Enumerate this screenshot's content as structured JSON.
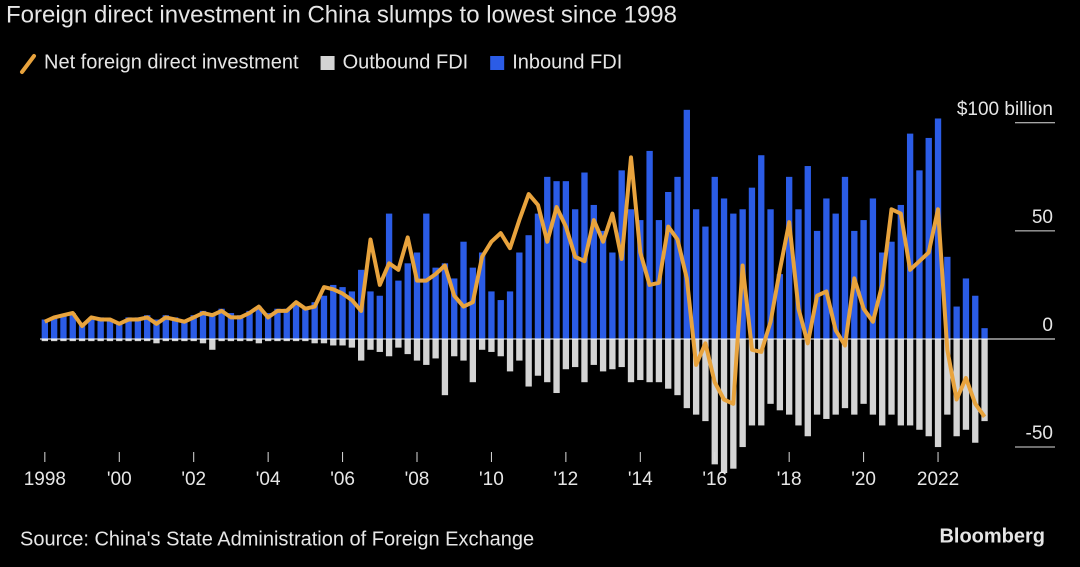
{
  "chart_data": {
    "type": "bar-line",
    "title": "Foreign direct investment in China slumps to lowest since 1998",
    "source": "Source: China's State Administration of Foreign Exchange",
    "brand": "Bloomberg",
    "x": [
      1998,
      1998.25,
      1998.5,
      1998.75,
      1999,
      1999.25,
      1999.5,
      1999.75,
      2000,
      2000.25,
      2000.5,
      2000.75,
      2001,
      2001.25,
      2001.5,
      2001.75,
      2002,
      2002.25,
      2002.5,
      2002.75,
      2003,
      2003.25,
      2003.5,
      2003.75,
      2004,
      2004.25,
      2004.5,
      2004.75,
      2005,
      2005.25,
      2005.5,
      2005.75,
      2006,
      2006.25,
      2006.5,
      2006.75,
      2007,
      2007.25,
      2007.5,
      2007.75,
      2008,
      2008.25,
      2008.5,
      2008.75,
      2009,
      2009.25,
      2009.5,
      2009.75,
      2010,
      2010.25,
      2010.5,
      2010.75,
      2011,
      2011.25,
      2011.5,
      2011.75,
      2012,
      2012.25,
      2012.5,
      2012.75,
      2013,
      2013.25,
      2013.5,
      2013.75,
      2014,
      2014.25,
      2014.5,
      2014.75,
      2015,
      2015.25,
      2015.5,
      2015.75,
      2016,
      2016.25,
      2016.5,
      2016.75,
      2017,
      2017.25,
      2017.5,
      2017.75,
      2018,
      2018.25,
      2018.5,
      2018.75,
      2019,
      2019.25,
      2019.5,
      2019.75,
      2020,
      2020.25,
      2020.5,
      2020.75,
      2021,
      2021.25,
      2021.5,
      2021.75,
      2022,
      2022.25,
      2022.5,
      2022.75,
      2023,
      2023.25
    ],
    "series": [
      {
        "name": "Net foreign direct investment",
        "kind": "line",
        "color": "#e8a33d",
        "values": [
          8,
          10,
          11,
          12,
          6,
          10,
          9,
          9,
          7,
          9,
          9,
          10,
          7,
          10,
          9,
          8,
          10,
          12,
          11,
          13,
          10,
          10,
          12,
          15,
          10,
          13,
          13,
          17,
          14,
          15,
          24,
          23,
          21,
          18,
          13,
          46,
          25,
          35,
          32,
          47,
          27,
          27,
          30,
          34,
          20,
          15,
          17,
          38,
          45,
          49,
          42,
          55,
          67,
          62,
          45,
          61,
          52,
          38,
          36,
          55,
          45,
          58,
          37,
          84,
          40,
          25,
          26,
          52,
          46,
          28,
          -12,
          -2,
          -20,
          -28,
          -30,
          34,
          -5,
          -6,
          8,
          32,
          54,
          14,
          -2,
          20,
          22,
          4,
          -3,
          28,
          14,
          8,
          25,
          60,
          58,
          32,
          36,
          40,
          60,
          -5,
          -28,
          -18,
          -30,
          -36
        ]
      },
      {
        "name": "Outbound FDI",
        "kind": "bar",
        "color": "#d4d4d4",
        "values": [
          -1,
          -1,
          -1,
          -1,
          -1,
          -1,
          -1,
          -1,
          -1,
          -1,
          -1,
          -1,
          -2,
          -1,
          -1,
          -1,
          -1,
          -2,
          -5,
          -1,
          -1,
          -1,
          -1,
          -2,
          -1,
          -1,
          -1,
          -1,
          -1,
          -2,
          -2,
          -3,
          -3,
          -4,
          -10,
          -5,
          -6,
          -8,
          -4,
          -7,
          -10,
          -12,
          -9,
          -26,
          -8,
          -10,
          -20,
          -5,
          -6,
          -8,
          -15,
          -10,
          -22,
          -17,
          -20,
          -25,
          -14,
          -13,
          -20,
          -12,
          -15,
          -14,
          -13,
          -20,
          -19,
          -20,
          -20,
          -23,
          -26,
          -32,
          -35,
          -38,
          -58,
          -62,
          -60,
          -50,
          -40,
          -40,
          -30,
          -33,
          -35,
          -40,
          -45,
          -35,
          -37,
          -35,
          -32,
          -35,
          -30,
          -35,
          -40,
          -35,
          -40,
          -40,
          -42,
          -45,
          -50,
          -35,
          -45,
          -42,
          -48,
          -38
        ]
      },
      {
        "name": "Inbound FDI",
        "kind": "bar",
        "color": "#2b5ce6",
        "values": [
          9,
          10,
          11,
          12,
          7,
          10,
          10,
          9,
          8,
          10,
          10,
          11,
          9,
          11,
          10,
          9,
          11,
          13,
          12,
          14,
          12,
          11,
          13,
          15,
          12,
          14,
          14,
          17,
          15,
          17,
          20,
          25,
          24,
          22,
          32,
          22,
          20,
          58,
          27,
          35,
          40,
          58,
          33,
          35,
          28,
          45,
          33,
          40,
          22,
          18,
          22,
          40,
          48,
          58,
          75,
          73,
          73,
          60,
          77,
          62,
          50,
          40,
          78,
          60,
          55,
          87,
          55,
          68,
          75,
          106,
          60,
          52,
          75,
          65,
          58,
          60,
          70,
          85,
          60,
          30,
          75,
          60,
          80,
          50,
          65,
          58,
          75,
          50,
          55,
          65,
          40,
          45,
          62,
          95,
          78,
          93,
          102,
          38,
          15,
          28,
          20,
          5
        ]
      }
    ],
    "xlim": [
      1997.87,
      2023.45
    ],
    "xticks": [
      {
        "value": 1998,
        "label": "1998"
      },
      {
        "value": 2000,
        "label": "'00"
      },
      {
        "value": 2002,
        "label": "'02"
      },
      {
        "value": 2004,
        "label": "'04"
      },
      {
        "value": 2006,
        "label": "'06"
      },
      {
        "value": 2008,
        "label": "'08"
      },
      {
        "value": 2010,
        "label": "'10"
      },
      {
        "value": 2012,
        "label": "'12"
      },
      {
        "value": 2014,
        "label": "'14"
      },
      {
        "value": 2016,
        "label": "'16"
      },
      {
        "value": 2018,
        "label": "'18"
      },
      {
        "value": 2020,
        "label": "'20"
      },
      {
        "value": 2022,
        "label": "2022"
      }
    ],
    "ylim": [
      -62,
      105
    ],
    "yticks": [
      {
        "value": 100,
        "label": "$100 billion"
      },
      50,
      0,
      -50
    ]
  }
}
